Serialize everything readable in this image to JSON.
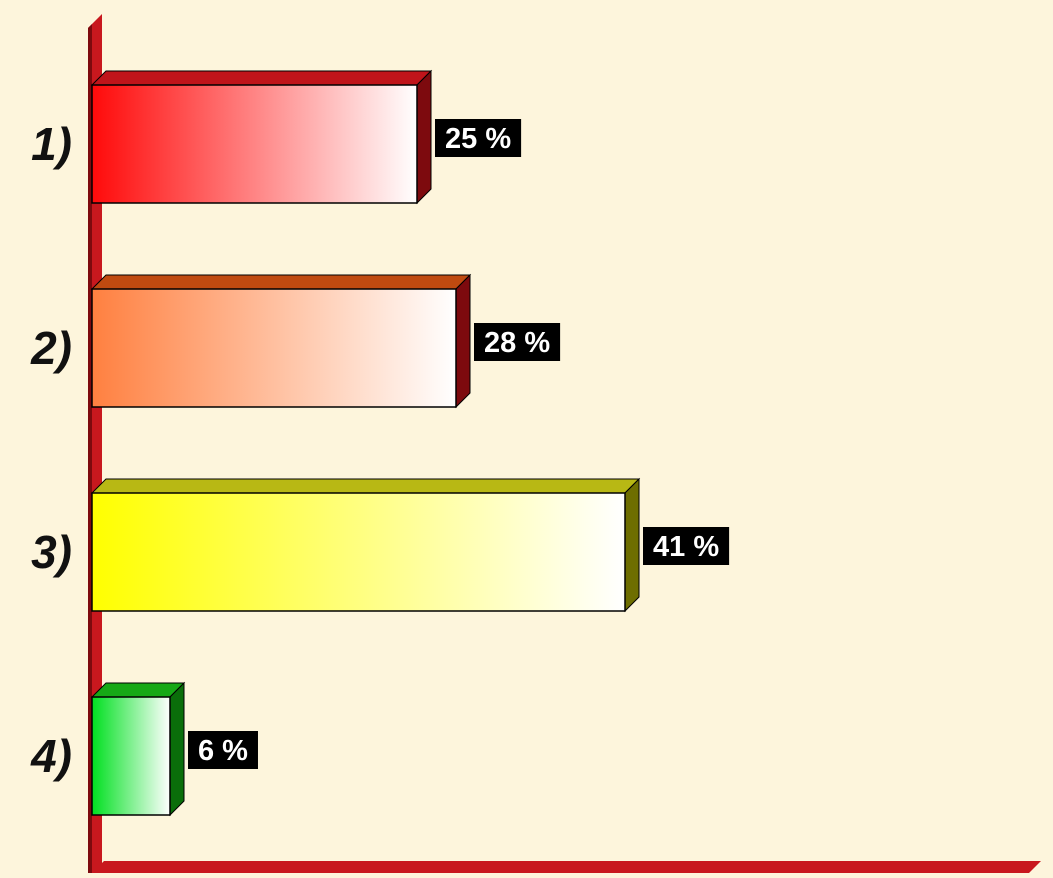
{
  "chart_data": {
    "type": "bar",
    "orientation": "horizontal",
    "style": "3d-gradient",
    "categories": [
      "1)",
      "2)",
      "3)",
      "4)"
    ],
    "values": [
      25,
      28,
      41,
      6
    ],
    "value_labels": [
      "25 %",
      "28 %",
      "41 %",
      "6 %"
    ],
    "unit": "%",
    "title": "",
    "xlabel": "",
    "ylabel": "",
    "grid": false,
    "legend": "none",
    "colors": {
      "background": "#fdf5dc",
      "axis": "#c8181e",
      "axis_shade": "#7d0a0e",
      "label_box": "#000000",
      "bars": [
        {
          "base": "#ff0a0a",
          "top": "#c0141a",
          "side": "#7d0a0e"
        },
        {
          "base": "#ff8040",
          "top": "#c04a10",
          "side": "#7d0a0e"
        },
        {
          "base": "#ffff00",
          "top": "#b8b814",
          "side": "#6e6e00"
        },
        {
          "base": "#00e020",
          "top": "#16a816",
          "side": "#0a6e0a"
        }
      ]
    }
  }
}
